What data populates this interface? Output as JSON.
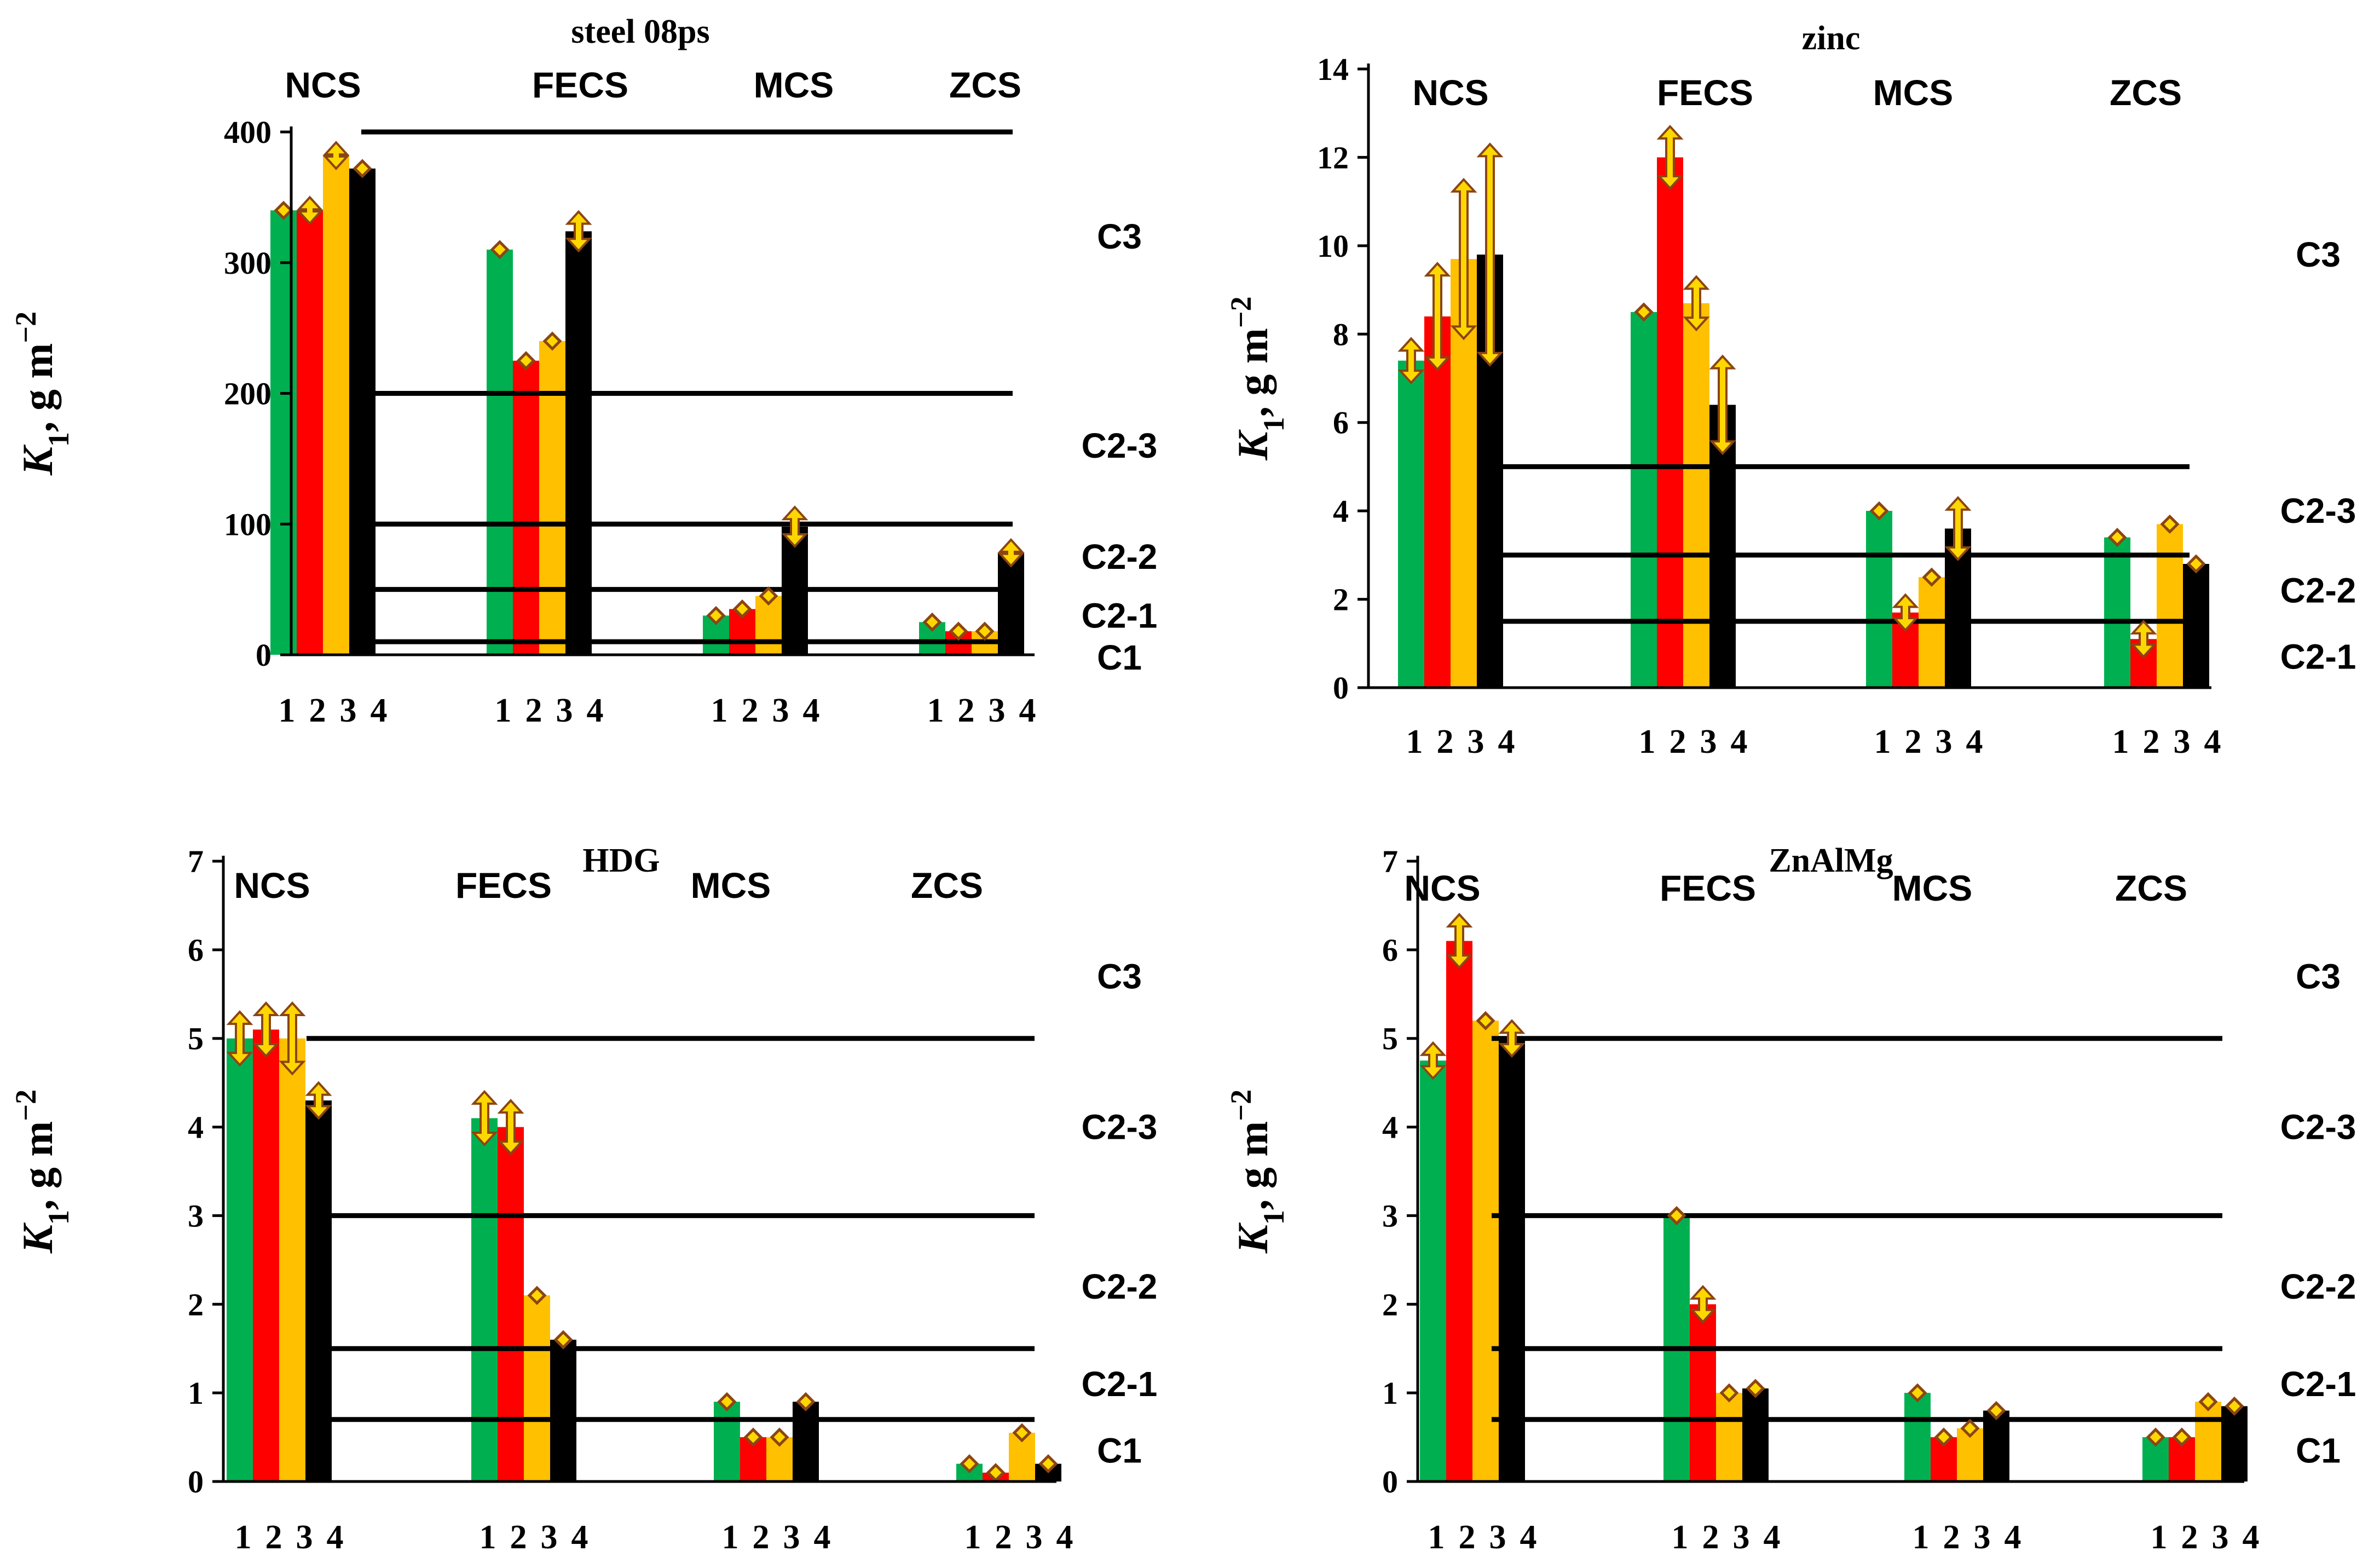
{
  "colors": {
    "s1": "#00b050",
    "s2": "#ff0000",
    "s3": "#ffc000",
    "s4": "#000000",
    "arrow_fill": "#ffd700",
    "arrow_stroke": "#8b4513"
  },
  "chart_data": [
    {
      "type": "bar",
      "title": "steel 08ps",
      "ylabel_main": "K",
      "ylabel_sub": "1",
      "ylabel_rest": ", g m",
      "ylabel_sup": "−2",
      "ylim": [
        0,
        400
      ],
      "yticks": [
        0,
        100,
        200,
        300,
        400
      ],
      "groups": [
        "NCS",
        "FECS",
        "MCS",
        "ZCS"
      ],
      "series_labels": [
        "1",
        "2",
        "3",
        "4"
      ],
      "values": [
        [
          340,
          340,
          382,
          372
        ],
        [
          310,
          225,
          240,
          324
        ],
        [
          30,
          35,
          45,
          98
        ],
        [
          25,
          18,
          18,
          78
        ]
      ],
      "errors": [
        [
          3,
          10,
          10,
          7
        ],
        [
          3,
          5,
          4,
          15
        ],
        [
          3,
          5,
          5,
          15
        ],
        [
          6,
          3,
          3,
          10
        ]
      ],
      "thresholds": [
        400,
        200,
        100,
        50,
        10
      ],
      "zones": [
        {
          "label": "C3",
          "y": 320
        },
        {
          "label": "C2-3",
          "y": 160
        },
        {
          "label": "C2-2",
          "y": 75
        },
        {
          "label": "C2-1",
          "y": 30
        },
        {
          "label": "C1",
          "y": -2
        }
      ]
    },
    {
      "type": "bar",
      "title": "zinc",
      "ylabel_main": "K",
      "ylabel_sub": "1",
      "ylabel_rest": ", g m",
      "ylabel_sup": "−2",
      "ylim": [
        0,
        14
      ],
      "yticks": [
        0,
        2,
        4,
        6,
        8,
        10,
        12,
        14
      ],
      "groups": [
        "NCS",
        "FECS",
        "MCS",
        "ZCS"
      ],
      "series_labels": [
        "1",
        "2",
        "3",
        "4"
      ],
      "values": [
        [
          7.4,
          8.4,
          9.7,
          9.8
        ],
        [
          8.5,
          12.0,
          8.7,
          6.4
        ],
        [
          4.0,
          1.7,
          2.5,
          3.6
        ],
        [
          3.4,
          1.1,
          3.7,
          2.8
        ]
      ],
      "errors": [
        [
          0.5,
          1.2,
          1.8,
          2.5
        ],
        [
          0.05,
          0.7,
          0.6,
          1.1
        ],
        [
          0.05,
          0.4,
          0.1,
          0.7
        ],
        [
          0.2,
          0.4,
          0.1,
          0.1
        ]
      ],
      "thresholds": [
        5,
        3,
        1.5
      ],
      "zones": [
        {
          "label": "C3",
          "y": 9.8
        },
        {
          "label": "C2-3",
          "y": 4.0
        },
        {
          "label": "C2-2",
          "y": 2.2
        },
        {
          "label": "C2-1",
          "y": 0.7
        }
      ]
    },
    {
      "type": "bar",
      "title": "HDG",
      "ylabel_main": "K",
      "ylabel_sub": "1",
      "ylabel_rest": ", g m",
      "ylabel_sup": "−2",
      "ylim": [
        0,
        7
      ],
      "yticks": [
        0,
        1,
        2,
        3,
        4,
        5,
        6,
        7
      ],
      "groups": [
        "NCS",
        "FECS",
        "MCS",
        "ZCS"
      ],
      "series_labels": [
        "1",
        "2",
        "3",
        "4"
      ],
      "values": [
        [
          5.0,
          5.1,
          5.0,
          4.3
        ],
        [
          4.1,
          4.0,
          2.1,
          1.6
        ],
        [
          0.9,
          0.5,
          0.5,
          0.9
        ],
        [
          0.2,
          0.1,
          0.55,
          0.2
        ]
      ],
      "errors": [
        [
          0.3,
          0.3,
          0.4,
          0.2
        ],
        [
          0.3,
          0.3,
          0.05,
          0.1
        ],
        [
          0.05,
          0.05,
          0.05,
          0.05
        ],
        [
          0.05,
          0.05,
          0.05,
          0.05
        ]
      ],
      "thresholds": [
        5,
        3,
        1.5,
        0.7
      ],
      "zones": [
        {
          "label": "C3",
          "y": 5.7
        },
        {
          "label": "C2-3",
          "y": 4.0
        },
        {
          "label": "C2-2",
          "y": 2.2
        },
        {
          "label": "C2-1",
          "y": 1.1
        },
        {
          "label": "C1",
          "y": 0.35
        }
      ]
    },
    {
      "type": "bar",
      "title": "ZnAlMg",
      "ylabel_main": "K",
      "ylabel_sub": "1",
      "ylabel_rest": ", g m",
      "ylabel_sup": "−2",
      "ylim": [
        0,
        7
      ],
      "yticks": [
        0,
        1,
        2,
        3,
        4,
        5,
        6,
        7
      ],
      "groups": [
        "NCS",
        "FECS",
        "MCS",
        "ZCS"
      ],
      "series_labels": [
        "1",
        "2",
        "3",
        "4"
      ],
      "values": [
        [
          4.75,
          6.1,
          5.2,
          5.0
        ],
        [
          3.0,
          2.0,
          1.0,
          1.05
        ],
        [
          1.0,
          0.5,
          0.6,
          0.8
        ],
        [
          0.5,
          0.5,
          0.9,
          0.85
        ]
      ],
      "errors": [
        [
          0.2,
          0.3,
          0.05,
          0.2
        ],
        [
          0.1,
          0.2,
          0.1,
          0.05
        ],
        [
          0.05,
          0.1,
          0.05,
          0.05
        ],
        [
          0.05,
          0.05,
          0.05,
          0.05
        ]
      ],
      "thresholds": [
        5,
        3,
        1.5,
        0.7
      ],
      "zones": [
        {
          "label": "C3",
          "y": 5.7
        },
        {
          "label": "C2-3",
          "y": 4.0
        },
        {
          "label": "C2-2",
          "y": 2.2
        },
        {
          "label": "C2-1",
          "y": 1.1
        },
        {
          "label": "C1",
          "y": 0.35
        }
      ]
    }
  ]
}
